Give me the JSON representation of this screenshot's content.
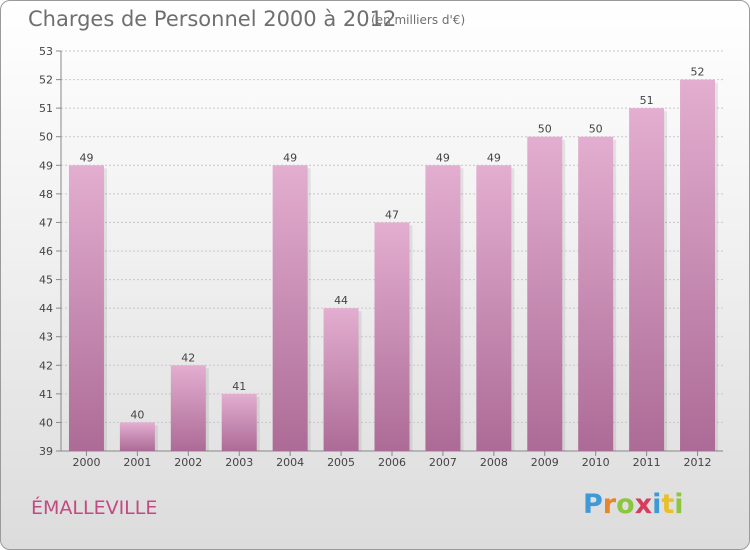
{
  "chart_data": {
    "type": "bar",
    "title": "Charges de Personnel 2000 à 2012",
    "subtitle": "(en milliers d'€)",
    "categories": [
      "2000",
      "2001",
      "2002",
      "2003",
      "2004",
      "2005",
      "2006",
      "2007",
      "2008",
      "2009",
      "2010",
      "2011",
      "2012"
    ],
    "values": [
      49,
      40,
      42,
      41,
      49,
      44,
      47,
      49,
      49,
      50,
      50,
      51,
      52
    ],
    "ylim": [
      39,
      53
    ],
    "yticks": [
      39,
      40,
      41,
      42,
      43,
      44,
      45,
      46,
      47,
      48,
      49,
      50,
      51,
      52,
      53
    ],
    "xlabel": "",
    "ylabel": "",
    "grid": true,
    "bar_color_top": "#e3aed0",
    "bar_color_bottom": "#ac6b96"
  },
  "place_name": "ÉMALLEVILLE",
  "logo": {
    "text": "Proxiti",
    "letter_colors": [
      "#3e9ad6",
      "#e8842b",
      "#8cc63e",
      "#d63c5e",
      "#3e9ad6",
      "#e8c02b",
      "#8cc63e"
    ]
  },
  "colors": {
    "title": "#6f6f6f",
    "place": "#c24a82"
  }
}
